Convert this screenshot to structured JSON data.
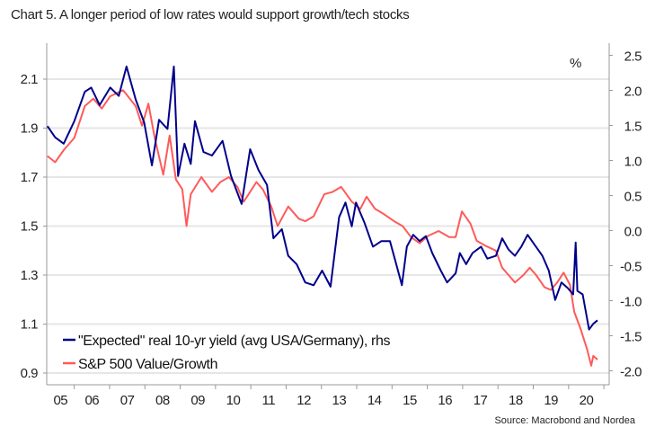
{
  "chart_data": {
    "type": "line",
    "title": "Chart 5. A longer period of low rates would support growth/tech stocks",
    "source": "Source: Macrobond and Nordea",
    "right_unit": "%",
    "x_tick_labels": [
      "05",
      "06",
      "07",
      "08",
      "09",
      "10",
      "11",
      "12",
      "13",
      "14",
      "15",
      "16",
      "17",
      "18",
      "19",
      "20"
    ],
    "xlim": [
      2005.22,
      2021.15
    ],
    "left_axis": {
      "ylim": [
        0.87,
        2.25
      ],
      "ticks": [
        0.9,
        1.1,
        1.3,
        1.5,
        1.7,
        1.9,
        2.1
      ],
      "tick_labels": [
        "0.9",
        "1.1",
        "1.3",
        "1.5",
        "1.7",
        "1.9",
        "2.1"
      ]
    },
    "right_axis": {
      "ylim": [
        -2.1,
        2.5
      ],
      "ticks": [
        -2.0,
        -1.5,
        -1.0,
        -0.5,
        0.0,
        0.5,
        1.0,
        1.5,
        2.0,
        2.5
      ],
      "tick_labels": [
        "-2.0",
        "-1.5",
        "-1.0",
        "-0.5",
        "0.0",
        "0.5",
        "1.0",
        "1.5",
        "2.0",
        "2.5"
      ]
    },
    "grid": "horizontal, left axis",
    "legend_position": "bottom-left",
    "series": [
      {
        "name": "\"Expected\" real 10-yr yield (avg USA/Germany), rhs",
        "axis": "right",
        "color": "#00008B",
        "x": [
          2005.24,
          2005.46,
          2005.7,
          2006.0,
          2006.3,
          2006.48,
          2006.72,
          2007.02,
          2007.26,
          2007.48,
          2007.74,
          2007.98,
          2008.2,
          2008.4,
          2008.64,
          2008.82,
          2008.94,
          2009.12,
          2009.3,
          2009.42,
          2009.66,
          2009.9,
          2010.2,
          2010.44,
          2010.74,
          2010.98,
          2011.22,
          2011.46,
          2011.64,
          2011.88,
          2012.06,
          2012.3,
          2012.54,
          2012.78,
          2013.02,
          2013.26,
          2013.5,
          2013.68,
          2013.86,
          2013.98,
          2014.22,
          2014.46,
          2014.7,
          2014.94,
          2015.12,
          2015.28,
          2015.42,
          2015.6,
          2015.78,
          2015.96,
          2016.14,
          2016.38,
          2016.56,
          2016.8,
          2016.92,
          2017.1,
          2017.28,
          2017.52,
          2017.7,
          2017.94,
          2018.12,
          2018.3,
          2018.48,
          2018.66,
          2018.84,
          2019.02,
          2019.26,
          2019.44,
          2019.62,
          2019.8,
          2019.98,
          2020.13,
          2020.2,
          2020.25,
          2020.4,
          2020.58,
          2020.7,
          2020.82
        ],
        "y": [
          1.49,
          1.33,
          1.24,
          1.56,
          1.98,
          2.04,
          1.79,
          2.04,
          1.92,
          2.34,
          1.87,
          1.54,
          0.93,
          1.58,
          1.45,
          2.34,
          0.78,
          1.24,
          0.95,
          1.56,
          1.12,
          1.07,
          1.28,
          0.78,
          0.38,
          1.16,
          0.86,
          0.65,
          -0.11,
          0.02,
          -0.36,
          -0.48,
          -0.74,
          -0.78,
          -0.57,
          -0.8,
          0.19,
          0.4,
          0.06,
          0.4,
          0.11,
          -0.23,
          -0.15,
          -0.15,
          -0.48,
          -0.78,
          -0.23,
          -0.06,
          -0.15,
          -0.08,
          -0.32,
          -0.57,
          -0.74,
          -0.61,
          -0.32,
          -0.48,
          -0.32,
          -0.23,
          -0.4,
          -0.36,
          -0.11,
          -0.27,
          -0.36,
          -0.23,
          -0.06,
          -0.19,
          -0.36,
          -0.57,
          -0.99,
          -0.74,
          -0.82,
          -0.91,
          -0.17,
          -0.86,
          -0.91,
          -1.41,
          -1.33,
          -1.28
        ]
      },
      {
        "name": "S&P 500 Value/Growth",
        "axis": "left",
        "color": "#FF5A5A",
        "x": [
          2005.24,
          2005.46,
          2005.7,
          2006.0,
          2006.3,
          2006.54,
          2006.78,
          2007.02,
          2007.38,
          2007.74,
          2007.92,
          2008.1,
          2008.28,
          2008.52,
          2008.7,
          2008.88,
          2009.06,
          2009.18,
          2009.3,
          2009.6,
          2009.9,
          2010.14,
          2010.38,
          2010.62,
          2010.8,
          2010.98,
          2011.16,
          2011.34,
          2011.58,
          2011.76,
          2012.06,
          2012.36,
          2012.54,
          2012.78,
          2013.08,
          2013.32,
          2013.56,
          2013.86,
          2014.1,
          2014.28,
          2014.52,
          2014.76,
          2015.06,
          2015.3,
          2015.54,
          2015.78,
          2016.02,
          2016.32,
          2016.62,
          2016.8,
          2016.98,
          2017.22,
          2017.4,
          2017.64,
          2017.94,
          2018.12,
          2018.3,
          2018.48,
          2018.72,
          2018.9,
          2019.08,
          2019.32,
          2019.5,
          2019.68,
          2019.86,
          2020.04,
          2020.16,
          2020.34,
          2020.52,
          2020.64,
          2020.7,
          2020.82
        ],
        "y": [
          1.786,
          1.761,
          1.81,
          1.86,
          1.99,
          2.02,
          1.98,
          2.03,
          2.055,
          1.99,
          1.91,
          2.0,
          1.86,
          1.71,
          1.87,
          1.69,
          1.65,
          1.5,
          1.63,
          1.7,
          1.64,
          1.68,
          1.7,
          1.66,
          1.6,
          1.64,
          1.68,
          1.65,
          1.58,
          1.5,
          1.58,
          1.53,
          1.52,
          1.54,
          1.63,
          1.64,
          1.66,
          1.6,
          1.57,
          1.62,
          1.57,
          1.55,
          1.52,
          1.5,
          1.455,
          1.43,
          1.46,
          1.48,
          1.455,
          1.455,
          1.56,
          1.51,
          1.44,
          1.42,
          1.4,
          1.33,
          1.3,
          1.27,
          1.3,
          1.33,
          1.3,
          1.25,
          1.24,
          1.27,
          1.31,
          1.26,
          1.15,
          1.08,
          1.0,
          0.93,
          0.97,
          0.955
        ]
      }
    ]
  }
}
